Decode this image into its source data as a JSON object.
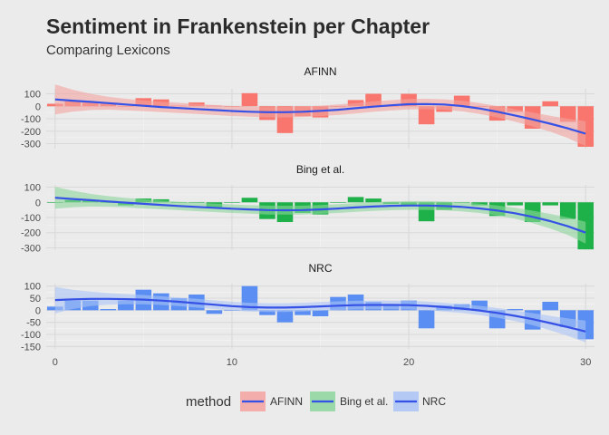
{
  "chart_data": {
    "type": "bar",
    "title": "Sentiment in Frankenstein per Chapter",
    "subtitle": "Comparing Lexicons",
    "xlabel": "",
    "ylabel": "",
    "x_range": [
      -0.5,
      30.5
    ],
    "x_ticks": [
      0,
      10,
      20,
      30
    ],
    "smooth_line_color": "#3551e6",
    "legend": {
      "title": "method",
      "position": "bottom",
      "entries": [
        "AFINN",
        "Bing et al.",
        "NRC"
      ]
    },
    "chapters": [
      0,
      1,
      2,
      3,
      4,
      5,
      6,
      7,
      8,
      9,
      10,
      11,
      12,
      13,
      14,
      15,
      16,
      17,
      18,
      19,
      20,
      21,
      22,
      23,
      24,
      25,
      26,
      27,
      28,
      29,
      30
    ],
    "panels": [
      {
        "label": "AFINN",
        "color": "#f8766d",
        "band_color": "#f4a3a0",
        "ylim": [
          -340,
          140
        ],
        "y_ticks": [
          100,
          0,
          -100,
          -200,
          -300
        ],
        "values": [
          20,
          40,
          30,
          20,
          0,
          65,
          55,
          5,
          30,
          5,
          0,
          105,
          -110,
          -215,
          -80,
          -90,
          0,
          50,
          100,
          0,
          100,
          -145,
          -45,
          85,
          0,
          -115,
          -45,
          -180,
          40,
          -125,
          -325
        ],
        "smooth": [
          55,
          45,
          35,
          25,
          14,
          4,
          -6,
          -14,
          -22,
          -30,
          -38,
          -44,
          -48,
          -48,
          -44,
          -37,
          -28,
          -16,
          -3,
          8,
          16,
          18,
          14,
          2,
          -18,
          -44,
          -74,
          -106,
          -140,
          -178,
          -220
        ],
        "band_halfwidth": [
          120,
          88,
          65,
          52,
          46,
          43,
          42,
          41,
          40,
          40,
          40,
          40,
          41,
          42,
          42,
          42,
          42,
          42,
          42,
          42,
          42,
          42,
          42,
          43,
          44,
          46,
          50,
          56,
          64,
          78,
          100
        ]
      },
      {
        "label": "Bing et al.",
        "color": "#1fb149",
        "band_color": "#8ed69c",
        "ylim": [
          -315,
          115
        ],
        "y_ticks": [
          100,
          0,
          -100,
          -200,
          -300
        ],
        "values": [
          0,
          15,
          10,
          0,
          -20,
          25,
          20,
          0,
          0,
          -40,
          0,
          30,
          -110,
          -130,
          -70,
          -80,
          0,
          35,
          25,
          -10,
          -20,
          -125,
          -50,
          0,
          -20,
          -90,
          -20,
          -130,
          -20,
          -110,
          -310
        ],
        "smooth": [
          30,
          22,
          14,
          6,
          -2,
          -10,
          -17,
          -24,
          -30,
          -36,
          -42,
          -47,
          -51,
          -52,
          -51,
          -47,
          -41,
          -34,
          -28,
          -23,
          -21,
          -21,
          -24,
          -30,
          -40,
          -54,
          -72,
          -96,
          -124,
          -158,
          -200
        ],
        "band_halfwidth": [
          72,
          55,
          42,
          35,
          31,
          30,
          29,
          28,
          28,
          28,
          28,
          28,
          29,
          29,
          29,
          29,
          29,
          29,
          29,
          29,
          29,
          29,
          29,
          30,
          31,
          33,
          36,
          41,
          48,
          58,
          72
        ]
      },
      {
        "label": "NRC",
        "color": "#5b8ef2",
        "band_color": "#aac3f5",
        "ylim": [
          -160,
          110
        ],
        "y_ticks": [
          100,
          50,
          0,
          -50,
          -100,
          -150
        ],
        "values": [
          15,
          40,
          40,
          5,
          40,
          85,
          70,
          50,
          65,
          -15,
          0,
          100,
          -20,
          -50,
          -20,
          -25,
          55,
          65,
          35,
          20,
          40,
          -75,
          20,
          25,
          40,
          -75,
          5,
          -80,
          35,
          -70,
          -120
        ],
        "smooth": [
          42,
          45,
          47,
          47,
          46,
          44,
          40,
          35,
          29,
          23,
          17,
          13,
          11,
          11,
          13,
          16,
          19,
          21,
          22,
          22,
          21,
          18,
          13,
          7,
          -1,
          -11,
          -23,
          -37,
          -53,
          -70,
          -88
        ],
        "band_halfwidth": [
          55,
          40,
          30,
          24,
          21,
          19,
          18,
          18,
          18,
          18,
          18,
          18,
          18,
          18,
          18,
          18,
          18,
          18,
          18,
          18,
          18,
          18,
          18,
          18,
          19,
          20,
          22,
          25,
          30,
          36,
          45
        ]
      }
    ]
  }
}
